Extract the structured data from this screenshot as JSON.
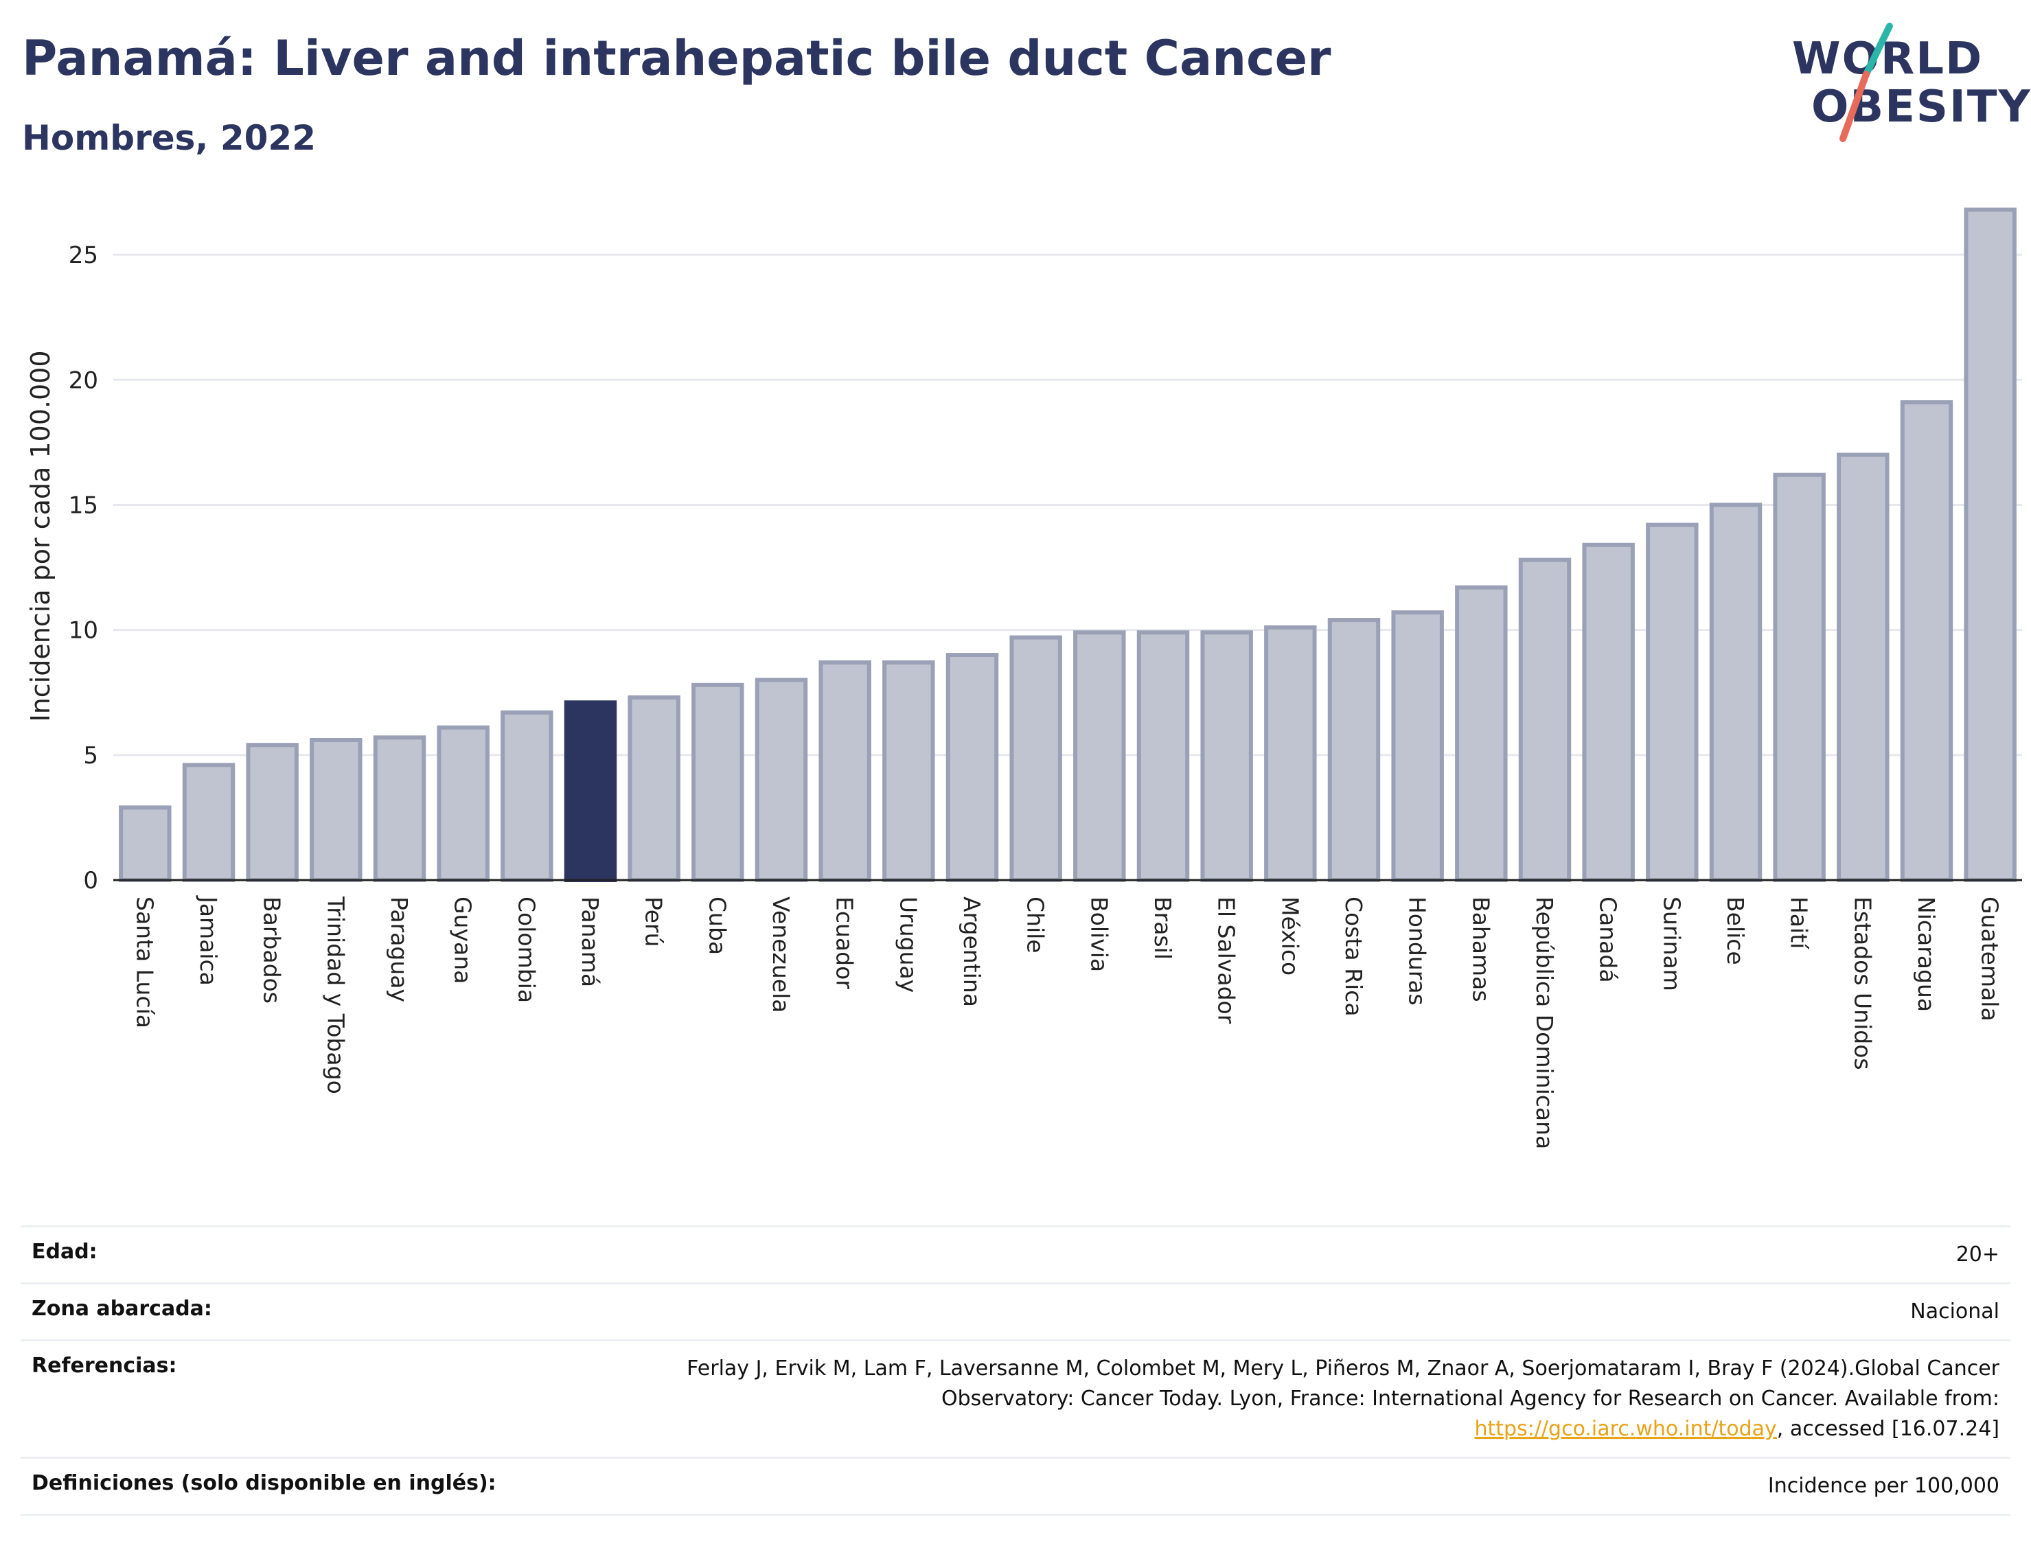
{
  "header": {
    "title": "Panamá: Liver and intrahepatic bile duct Cancer",
    "subtitle": "Hombres, 2022"
  },
  "logo": {
    "line1": "WORLD",
    "line2": "OBESITY",
    "accent_teal": "#2bb5a9",
    "accent_coral": "#e86a5a"
  },
  "colors": {
    "highlight_bar": "#2b355f",
    "bar_fill": "#c0c4d1",
    "bar_stroke": "#9aa0b5",
    "grid": "#e6e8ee"
  },
  "chart_data": {
    "type": "bar",
    "ylabel": "Incidencia por cada 100.000",
    "ylim": [
      0,
      27.5
    ],
    "yticks": [
      0,
      5,
      10,
      15,
      20,
      25
    ],
    "grid": true,
    "highlight": "Panamá",
    "categories": [
      "Santa Lucía",
      "Jamaica",
      "Barbados",
      "Trinidad y Tobago",
      "Paraguay",
      "Guyana",
      "Colombia",
      "Panamá",
      "Perú",
      "Cuba",
      "Venezuela",
      "Ecuador",
      "Uruguay",
      "Argentina",
      "Chile",
      "Bolivia",
      "Brasil",
      "El Salvador",
      "México",
      "Costa Rica",
      "Honduras",
      "Bahamas",
      "República Dominicana",
      "Canadá",
      "Surinam",
      "Belice",
      "Haití",
      "Estados Unidos",
      "Nicaragua",
      "Guatemala"
    ],
    "values": [
      2.9,
      4.6,
      5.4,
      5.6,
      5.7,
      6.1,
      6.7,
      7.1,
      7.3,
      7.8,
      8.0,
      8.7,
      8.7,
      9.0,
      9.7,
      9.9,
      9.9,
      9.9,
      10.1,
      10.4,
      10.7,
      11.7,
      12.8,
      13.4,
      14.2,
      15.0,
      16.2,
      17.0,
      19.1,
      26.8
    ]
  },
  "info": {
    "age_label": "Edad:",
    "age_value": "20+",
    "area_label": "Zona abarcada:",
    "area_value": "Nacional",
    "ref_label": "Referencias:",
    "ref_text_1": "Ferlay J, Ervik M, Lam F, Laversanne M, Colombet M, Mery L, Piñeros M, Znaor A, Soerjomataram I, Bray F (2024).Global Cancer Observatory: Cancer Today. Lyon, France: International Agency for Research on Cancer. Available from: ",
    "ref_link": "https://gco.iarc.who.int/today",
    "ref_text_2": ", accessed [16.07.24]",
    "def_label": "Definiciones (solo disponible en inglés):",
    "def_value": "Incidence per 100,000"
  }
}
